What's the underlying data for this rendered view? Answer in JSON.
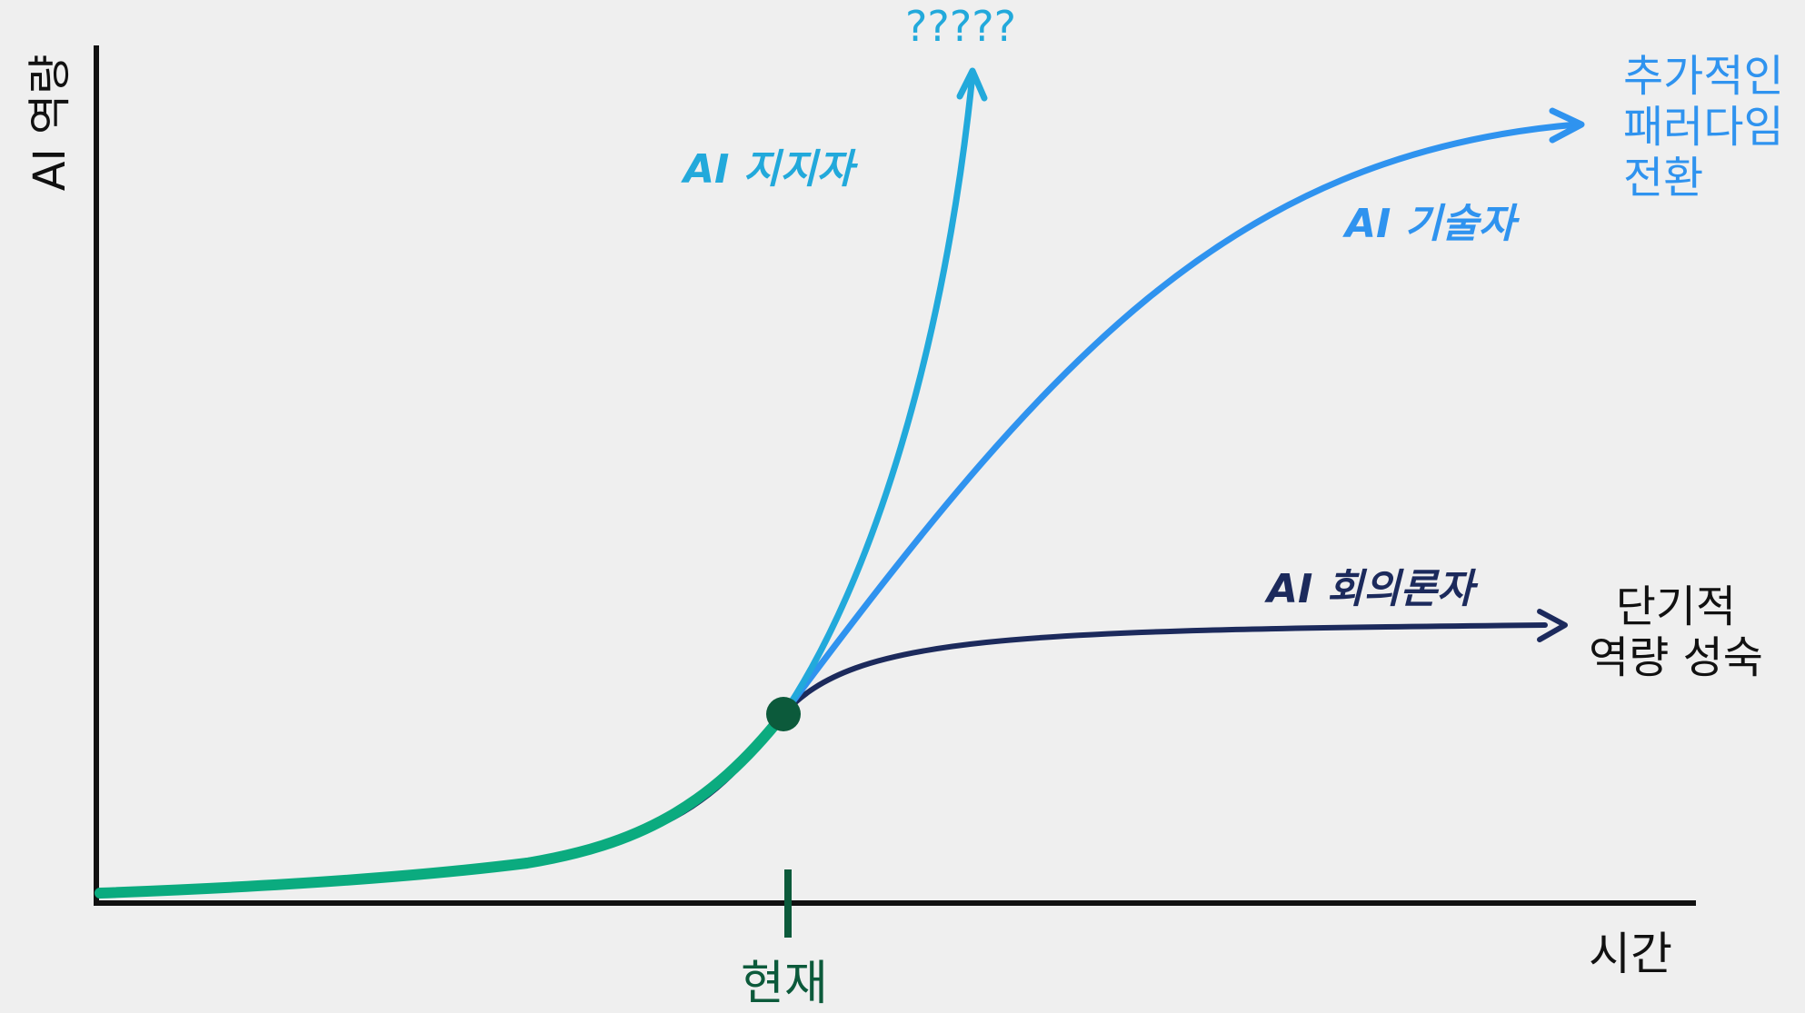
{
  "axes": {
    "y_label": "AI 역량",
    "x_label": "시간"
  },
  "now_marker": {
    "label": "현재"
  },
  "curves": {
    "optimist": {
      "label": "AI 지지자",
      "outcome": "?????",
      "color": "#22a9db"
    },
    "technologist": {
      "label": "AI 기술자",
      "outcome_lines": [
        "추가적인",
        "패러다임",
        "전환"
      ],
      "color": "#2f93ef"
    },
    "skeptic": {
      "label": "AI 회의론자",
      "outcome_lines": [
        "단기적",
        "역량 성숙"
      ],
      "color": "#1c2a5c"
    },
    "history": {
      "color": "#0bab7f"
    }
  },
  "colors": {
    "axis": "#111111",
    "now_marker": "#0c5a3b",
    "background": "#efefef"
  }
}
